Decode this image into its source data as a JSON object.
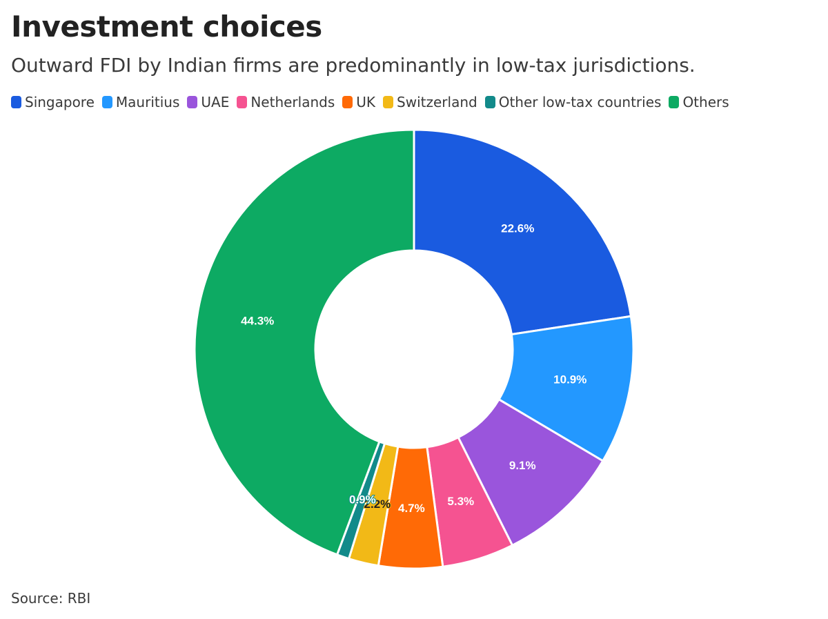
{
  "title": "Investment choices",
  "subtitle": "Outward FDI by Indian firms are predominantly in low-tax jurisdictions.",
  "source": "Source: RBI",
  "chart_data": {
    "type": "pie",
    "donut": true,
    "legend_position": "top",
    "categories": [
      "Singapore",
      "Mauritius",
      "UAE",
      "Netherlands",
      "UK",
      "Switzerland",
      "Other low-tax countries",
      "Others"
    ],
    "values": [
      22.6,
      10.9,
      9.1,
      5.3,
      4.7,
      2.2,
      0.9,
      44.3
    ],
    "labels": [
      "22.6%",
      "10.9%",
      "9.1%",
      "5.3%",
      "4.7%",
      "2.2%",
      "0.9%",
      "44.3%"
    ],
    "colors": [
      "#1a5be0",
      "#2398ff",
      "#9a55dc",
      "#f55391",
      "#ff6a06",
      "#f2b917",
      "#128a8a",
      "#0daa63"
    ],
    "label_colors": [
      "#ffffff",
      "#ffffff",
      "#ffffff",
      "#ffffff",
      "#ffffff",
      "#222222",
      "#ffffff",
      "#ffffff"
    ]
  }
}
